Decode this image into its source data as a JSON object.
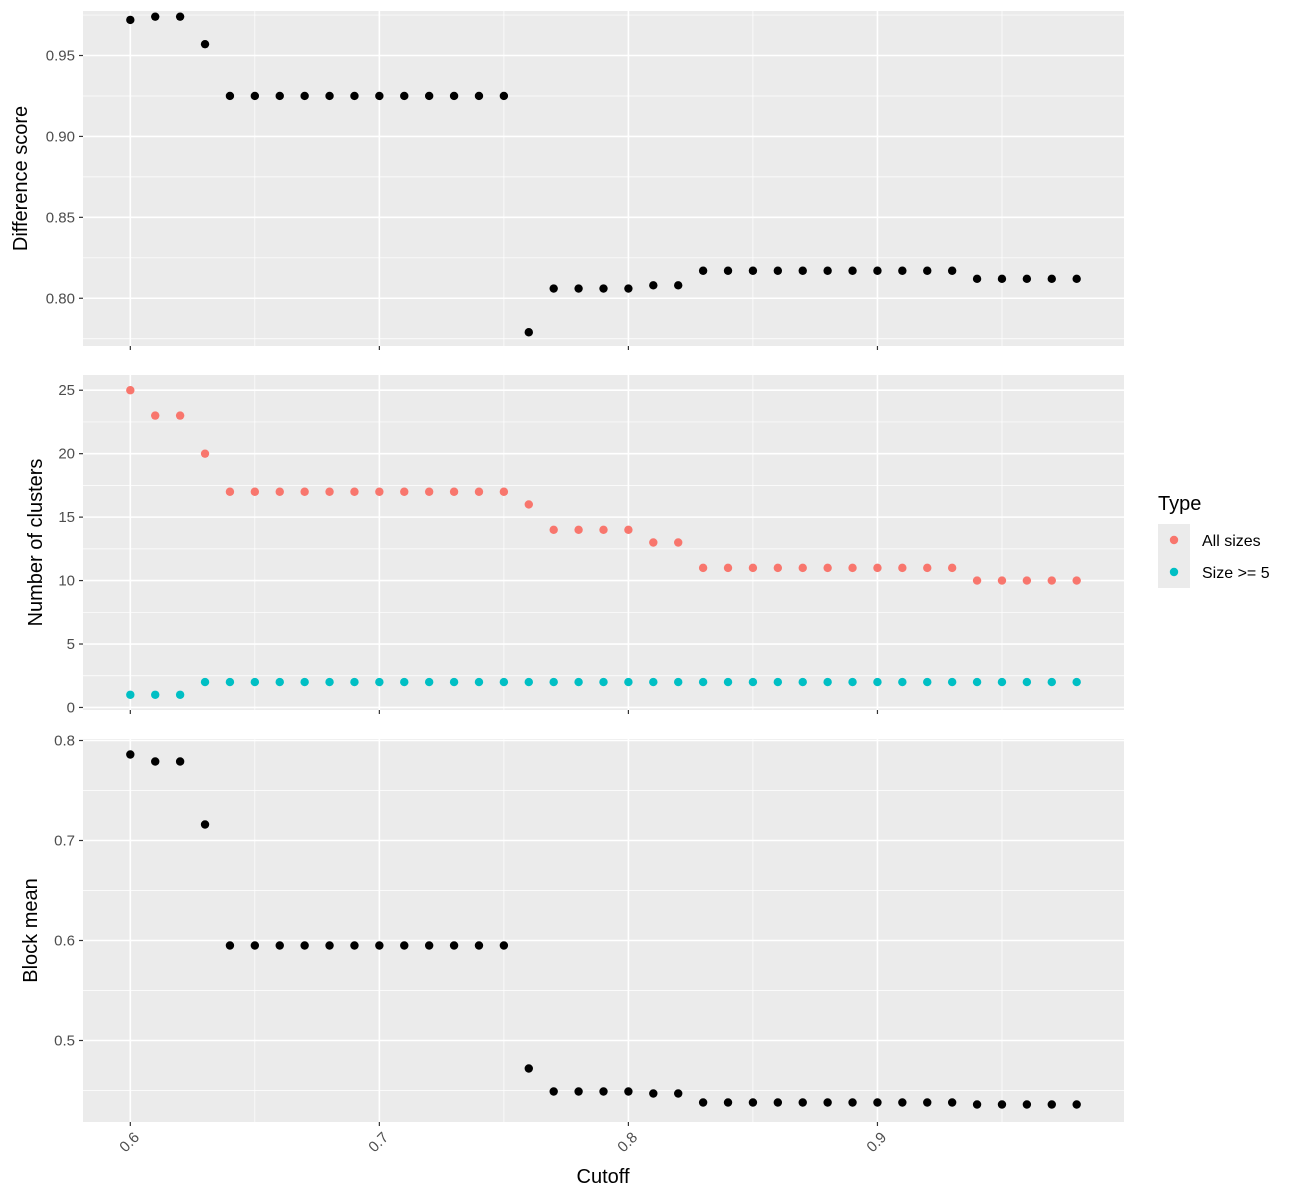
{
  "colors": {
    "panel_bg": "#EBEBEB",
    "grid_major": "#FFFFFF",
    "point_default": "#000000",
    "all_sizes": "#F8766D",
    "size_ge_5": "#00BFC4"
  },
  "shared_x": {
    "label": "Cutoff",
    "ticks": [
      0.6,
      0.7,
      0.8,
      0.9
    ],
    "tick_labels": [
      "0.6",
      "0.7",
      "0.8",
      "0.9"
    ],
    "range": [
      0.581,
      0.999
    ]
  },
  "legend": {
    "title": "Type",
    "items": [
      {
        "label": "All sizes",
        "color": "#F8766D"
      },
      {
        "label": "Size >= 5",
        "color": "#00BFC4"
      }
    ]
  },
  "chart_data": [
    {
      "type": "scatter",
      "ylabel": "Difference score",
      "xlabel": "",
      "ylim": [
        0.7705,
        0.9775
      ],
      "yticks": [
        0.8,
        0.85,
        0.9,
        0.95
      ],
      "ytick_labels": [
        "0.80",
        "0.85",
        "0.90",
        "0.95"
      ],
      "grid": true,
      "series": [
        {
          "x": [
            0.6,
            0.61,
            0.62,
            0.63,
            0.64,
            0.65,
            0.66,
            0.67,
            0.68,
            0.69,
            0.7,
            0.71,
            0.72,
            0.73,
            0.74,
            0.75,
            0.76,
            0.77,
            0.78,
            0.79,
            0.8,
            0.81,
            0.82,
            0.83,
            0.84,
            0.85,
            0.86,
            0.87,
            0.88,
            0.89,
            0.9,
            0.91,
            0.92,
            0.93,
            0.94,
            0.95,
            0.96,
            0.97,
            0.98
          ],
          "y": [
            0.972,
            0.974,
            0.974,
            0.957,
            0.925,
            0.925,
            0.925,
            0.925,
            0.925,
            0.925,
            0.925,
            0.925,
            0.925,
            0.925,
            0.925,
            0.925,
            0.779,
            0.806,
            0.806,
            0.806,
            0.806,
            0.808,
            0.808,
            0.817,
            0.817,
            0.817,
            0.817,
            0.817,
            0.817,
            0.817,
            0.817,
            0.817,
            0.817,
            0.817,
            0.812,
            0.812,
            0.812,
            0.812,
            0.812
          ]
        }
      ]
    },
    {
      "type": "scatter",
      "ylabel": "Number of clusters",
      "xlabel": "",
      "ylim": [
        -0.2,
        26.2
      ],
      "yticks": [
        0,
        5,
        10,
        15,
        20,
        25
      ],
      "ytick_labels": [
        "0",
        "5",
        "10",
        "15",
        "20",
        "25"
      ],
      "grid": true,
      "legend_position": "right",
      "series": [
        {
          "name": "All sizes",
          "x": [
            0.6,
            0.61,
            0.62,
            0.63,
            0.64,
            0.65,
            0.66,
            0.67,
            0.68,
            0.69,
            0.7,
            0.71,
            0.72,
            0.73,
            0.74,
            0.75,
            0.76,
            0.77,
            0.78,
            0.79,
            0.8,
            0.81,
            0.82,
            0.83,
            0.84,
            0.85,
            0.86,
            0.87,
            0.88,
            0.89,
            0.9,
            0.91,
            0.92,
            0.93,
            0.94,
            0.95,
            0.96,
            0.97,
            0.98
          ],
          "y": [
            25,
            23,
            23,
            20,
            17,
            17,
            17,
            17,
            17,
            17,
            17,
            17,
            17,
            17,
            17,
            17,
            16,
            14,
            14,
            14,
            14,
            13,
            13,
            11,
            11,
            11,
            11,
            11,
            11,
            11,
            11,
            11,
            11,
            11,
            10,
            10,
            10,
            10,
            10
          ]
        },
        {
          "name": "Size >= 5",
          "x": [
            0.6,
            0.61,
            0.62,
            0.63,
            0.64,
            0.65,
            0.66,
            0.67,
            0.68,
            0.69,
            0.7,
            0.71,
            0.72,
            0.73,
            0.74,
            0.75,
            0.76,
            0.77,
            0.78,
            0.79,
            0.8,
            0.81,
            0.82,
            0.83,
            0.84,
            0.85,
            0.86,
            0.87,
            0.88,
            0.89,
            0.9,
            0.91,
            0.92,
            0.93,
            0.94,
            0.95,
            0.96,
            0.97,
            0.98
          ],
          "y": [
            1,
            1,
            1,
            2,
            2,
            2,
            2,
            2,
            2,
            2,
            2,
            2,
            2,
            2,
            2,
            2,
            2,
            2,
            2,
            2,
            2,
            2,
            2,
            2,
            2,
            2,
            2,
            2,
            2,
            2,
            2,
            2,
            2,
            2,
            2,
            2,
            2,
            2,
            2
          ]
        }
      ]
    },
    {
      "type": "scatter",
      "ylabel": "Block mean",
      "xlabel": "Cutoff",
      "ylim": [
        0.4185,
        0.8015
      ],
      "yticks": [
        0.5,
        0.6,
        0.7,
        0.8
      ],
      "ytick_labels": [
        "0.5",
        "0.6",
        "0.7",
        "0.8"
      ],
      "grid": true,
      "series": [
        {
          "x": [
            0.6,
            0.61,
            0.62,
            0.63,
            0.64,
            0.65,
            0.66,
            0.67,
            0.68,
            0.69,
            0.7,
            0.71,
            0.72,
            0.73,
            0.74,
            0.75,
            0.76,
            0.77,
            0.78,
            0.79,
            0.8,
            0.81,
            0.82,
            0.83,
            0.84,
            0.85,
            0.86,
            0.87,
            0.88,
            0.89,
            0.9,
            0.91,
            0.92,
            0.93,
            0.94,
            0.95,
            0.96,
            0.97,
            0.98
          ],
          "y": [
            0.786,
            0.779,
            0.779,
            0.716,
            0.595,
            0.595,
            0.595,
            0.595,
            0.595,
            0.595,
            0.595,
            0.595,
            0.595,
            0.595,
            0.595,
            0.595,
            0.472,
            0.449,
            0.449,
            0.449,
            0.449,
            0.447,
            0.447,
            0.438,
            0.438,
            0.438,
            0.438,
            0.438,
            0.438,
            0.438,
            0.438,
            0.438,
            0.438,
            0.438,
            0.436,
            0.436,
            0.436,
            0.436,
            0.436
          ]
        }
      ]
    }
  ]
}
